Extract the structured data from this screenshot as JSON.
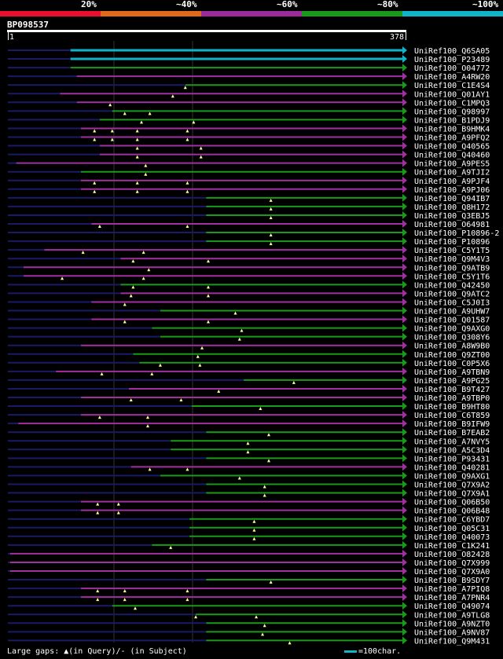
{
  "legend": {
    "segments": [
      {
        "label": "20%",
        "color": "#e8112d"
      },
      {
        "label": "~40%",
        "color": "#e06a1a"
      },
      {
        "label": "~60%",
        "color": "#9b2b9b"
      },
      {
        "label": "~80%",
        "color": "#1a9a1a"
      },
      {
        "label": "~100%",
        "color": "#11b3c8"
      }
    ]
  },
  "query": {
    "id": "BP098537",
    "start": "1",
    "end": "378"
  },
  "colors": {
    "cyan": "#11b3c8",
    "green": "#1a9a1a",
    "purple": "#a030a0",
    "navy": "#1a1a66",
    "marker": "#ffff99"
  },
  "hits": [
    {
      "id": "UniRef100_Q6SA05",
      "color": "cyan",
      "start": 60,
      "end": 378,
      "markers": []
    },
    {
      "id": "UniRef100_P23489",
      "color": "cyan",
      "start": 60,
      "end": 378,
      "markers": []
    },
    {
      "id": "UniRef100_O04772",
      "color": "green",
      "start": 60,
      "end": 378,
      "markers": []
    },
    {
      "id": "UniRef100_A4RW20",
      "color": "purple",
      "start": 66,
      "end": 378,
      "markers": []
    },
    {
      "id": "UniRef100_C1E4S4",
      "color": "green",
      "start": 170,
      "end": 378,
      "markers": [
        170
      ]
    },
    {
      "id": "UniRef100_Q01AY1",
      "color": "purple",
      "start": 50,
      "end": 378,
      "markers": [
        158
      ]
    },
    {
      "id": "UniRef100_C1MPQ3",
      "color": "purple",
      "start": 66,
      "end": 378,
      "markers": [
        98
      ]
    },
    {
      "id": "UniRef100_Q98997",
      "color": "green",
      "start": 100,
      "end": 378,
      "markers": [
        112,
        136
      ]
    },
    {
      "id": "UniRef100_B1PDJ9",
      "color": "green",
      "start": 88,
      "end": 378,
      "markers": [
        128,
        178
      ]
    },
    {
      "id": "UniRef100_B9HMK4",
      "color": "purple",
      "start": 70,
      "end": 378,
      "markers": [
        83,
        100,
        124,
        172
      ]
    },
    {
      "id": "UniRef100_A9PFQ2",
      "color": "purple",
      "start": 70,
      "end": 378,
      "markers": [
        83,
        100,
        124,
        172
      ]
    },
    {
      "id": "UniRef100_Q40565",
      "color": "purple",
      "start": 88,
      "end": 378,
      "markers": [
        124,
        185
      ]
    },
    {
      "id": "UniRef100_Q40460",
      "color": "purple",
      "start": 88,
      "end": 378,
      "markers": [
        124,
        185
      ]
    },
    {
      "id": "UniRef100_A9PES5",
      "color": "purple",
      "start": 8,
      "end": 378,
      "markers": [
        132
      ]
    },
    {
      "id": "UniRef100_A9TJI2",
      "color": "green",
      "start": 70,
      "end": 378,
      "markers": [
        132
      ]
    },
    {
      "id": "UniRef100_A9PJF4",
      "color": "purple",
      "start": 70,
      "end": 378,
      "markers": [
        83,
        124,
        172
      ]
    },
    {
      "id": "UniRef100_A9PJ06",
      "color": "purple",
      "start": 70,
      "end": 378,
      "markers": [
        83,
        124,
        172
      ]
    },
    {
      "id": "UniRef100_Q94IB7",
      "color": "green",
      "start": 190,
      "end": 378,
      "markers": [
        252
      ]
    },
    {
      "id": "UniRef100_Q8H172",
      "color": "green",
      "start": 190,
      "end": 378,
      "markers": [
        252
      ]
    },
    {
      "id": "UniRef100_Q3EBJ5",
      "color": "green",
      "start": 190,
      "end": 378,
      "markers": [
        252
      ]
    },
    {
      "id": "UniRef100_O64981",
      "color": "purple",
      "start": 80,
      "end": 378,
      "markers": [
        88,
        172
      ]
    },
    {
      "id": "UniRef100_P10896-2",
      "color": "green",
      "start": 190,
      "end": 378,
      "markers": [
        252
      ]
    },
    {
      "id": "UniRef100_P10896",
      "color": "green",
      "start": 190,
      "end": 378,
      "markers": [
        252
      ]
    },
    {
      "id": "UniRef100_C5Y1T5",
      "color": "purple",
      "start": 35,
      "end": 378,
      "markers": [
        72,
        130
      ]
    },
    {
      "id": "UniRef100_Q9M4V3",
      "color": "purple",
      "start": 108,
      "end": 378,
      "markers": [
        120,
        192
      ]
    },
    {
      "id": "UniRef100_Q9ATB9",
      "color": "purple",
      "start": 15,
      "end": 378,
      "markers": [
        135
      ]
    },
    {
      "id": "UniRef100_C5Y1T6",
      "color": "purple",
      "start": 15,
      "end": 378,
      "markers": [
        52,
        130
      ]
    },
    {
      "id": "UniRef100_Q42450",
      "color": "green",
      "start": 108,
      "end": 378,
      "markers": [
        120,
        192
      ]
    },
    {
      "id": "UniRef100_Q9ATC2",
      "color": "purple",
      "start": 108,
      "end": 378,
      "markers": [
        118,
        192
      ]
    },
    {
      "id": "UniRef100_C5J0I3",
      "color": "purple",
      "start": 80,
      "end": 378,
      "markers": [
        112
      ]
    },
    {
      "id": "UniRef100_A9UHW7",
      "color": "green",
      "start": 146,
      "end": 378,
      "markers": [
        218
      ]
    },
    {
      "id": "UniRef100_Q01587",
      "color": "purple",
      "start": 80,
      "end": 378,
      "markers": [
        112,
        192
      ]
    },
    {
      "id": "UniRef100_Q9AXG0",
      "color": "green",
      "start": 138,
      "end": 378,
      "markers": [
        224
      ]
    },
    {
      "id": "UniRef100_Q308Y6",
      "color": "green",
      "start": 146,
      "end": 378,
      "markers": [
        222
      ]
    },
    {
      "id": "UniRef100_A8W9B0",
      "color": "purple",
      "start": 70,
      "end": 378,
      "markers": [
        186
      ]
    },
    {
      "id": "UniRef100_Q9ZT00",
      "color": "green",
      "start": 120,
      "end": 378,
      "markers": [
        182
      ]
    },
    {
      "id": "UniRef100_C0P5X6",
      "color": "green",
      "start": 126,
      "end": 378,
      "markers": [
        146,
        184
      ]
    },
    {
      "id": "UniRef100_A9TBN9",
      "color": "purple",
      "start": 46,
      "end": 378,
      "markers": [
        90,
        138
      ]
    },
    {
      "id": "UniRef100_A9PG25",
      "color": "green",
      "start": 226,
      "end": 378,
      "markers": [
        274
      ]
    },
    {
      "id": "UniRef100_B9T427",
      "color": "purple",
      "start": 116,
      "end": 378,
      "markers": [
        202
      ]
    },
    {
      "id": "UniRef100_A9TBP0",
      "color": "purple",
      "start": 70,
      "end": 378,
      "markers": [
        118,
        166
      ]
    },
    {
      "id": "UniRef100_B9HT80",
      "color": "green",
      "start": 176,
      "end": 378,
      "markers": [
        242
      ]
    },
    {
      "id": "UniRef100_C6T859",
      "color": "purple",
      "start": 70,
      "end": 378,
      "markers": [
        88,
        134
      ]
    },
    {
      "id": "UniRef100_B9IFW9",
      "color": "purple",
      "start": 10,
      "end": 378,
      "markers": [
        134
      ]
    },
    {
      "id": "UniRef100_B7EAB2",
      "color": "green",
      "start": 190,
      "end": 378,
      "markers": [
        250
      ]
    },
    {
      "id": "UniRef100_A7NVY5",
      "color": "green",
      "start": 156,
      "end": 378,
      "markers": [
        230
      ]
    },
    {
      "id": "UniRef100_A5C3D4",
      "color": "green",
      "start": 156,
      "end": 378,
      "markers": [
        230
      ]
    },
    {
      "id": "UniRef100_P93431",
      "color": "green",
      "start": 190,
      "end": 378,
      "markers": [
        250
      ]
    },
    {
      "id": "UniRef100_Q40281",
      "color": "purple",
      "start": 118,
      "end": 378,
      "markers": [
        136,
        172
      ]
    },
    {
      "id": "UniRef100_Q9AXG1",
      "color": "green",
      "start": 146,
      "end": 378,
      "markers": [
        222
      ]
    },
    {
      "id": "UniRef100_Q7X9A2",
      "color": "green",
      "start": 190,
      "end": 378,
      "markers": [
        246
      ]
    },
    {
      "id": "UniRef100_Q7X9A1",
      "color": "green",
      "start": 190,
      "end": 378,
      "markers": [
        246
      ]
    },
    {
      "id": "UniRef100_Q06B50",
      "color": "purple",
      "start": 70,
      "end": 378,
      "markers": [
        86,
        106
      ]
    },
    {
      "id": "UniRef100_Q06B48",
      "color": "purple",
      "start": 70,
      "end": 378,
      "markers": [
        86,
        106
      ]
    },
    {
      "id": "UniRef100_C6YBD7",
      "color": "green",
      "start": 174,
      "end": 378,
      "markers": [
        236
      ]
    },
    {
      "id": "UniRef100_Q05C31",
      "color": "green",
      "start": 174,
      "end": 378,
      "markers": [
        236
      ]
    },
    {
      "id": "UniRef100_Q40073",
      "color": "green",
      "start": 174,
      "end": 378,
      "markers": [
        236
      ]
    },
    {
      "id": "UniRef100_C1K241",
      "color": "green",
      "start": 138,
      "end": 378,
      "markers": [
        156
      ]
    },
    {
      "id": "UniRef100_O82428",
      "color": "purple",
      "start": 2,
      "end": 378,
      "markers": []
    },
    {
      "id": "UniRef100_Q7X999",
      "color": "purple",
      "start": 2,
      "end": 378,
      "markers": []
    },
    {
      "id": "UniRef100_Q7X9A0",
      "color": "purple",
      "start": 2,
      "end": 378,
      "markers": []
    },
    {
      "id": "UniRef100_B9SDY7",
      "color": "green",
      "start": 190,
      "end": 378,
      "markers": [
        252
      ]
    },
    {
      "id": "UniRef100_A7PIQ8",
      "color": "purple",
      "start": 70,
      "end": 378,
      "markers": [
        86,
        112,
        172
      ]
    },
    {
      "id": "UniRef100_A7PNR4",
      "color": "purple",
      "start": 70,
      "end": 378,
      "markers": [
        86,
        112,
        172
      ]
    },
    {
      "id": "UniRef100_Q49074",
      "color": "green",
      "start": 100,
      "end": 378,
      "markers": [
        122
      ]
    },
    {
      "id": "UniRef100_A9TLG8",
      "color": "green",
      "start": 180,
      "end": 378,
      "markers": [
        180,
        238
      ]
    },
    {
      "id": "UniRef100_A9NZT0",
      "color": "green",
      "start": 190,
      "end": 378,
      "markers": [
        246
      ]
    },
    {
      "id": "UniRef100_A9NV87",
      "color": "green",
      "start": 190,
      "end": 378,
      "markers": [
        244
      ]
    },
    {
      "id": "UniRef100_Q9M431",
      "color": "green",
      "start": 190,
      "end": 378,
      "markers": [
        270
      ]
    }
  ],
  "footer": {
    "gap_text": "Large gaps: ▲(in Query)/- (in Subject)",
    "scale_text": "=100char."
  }
}
